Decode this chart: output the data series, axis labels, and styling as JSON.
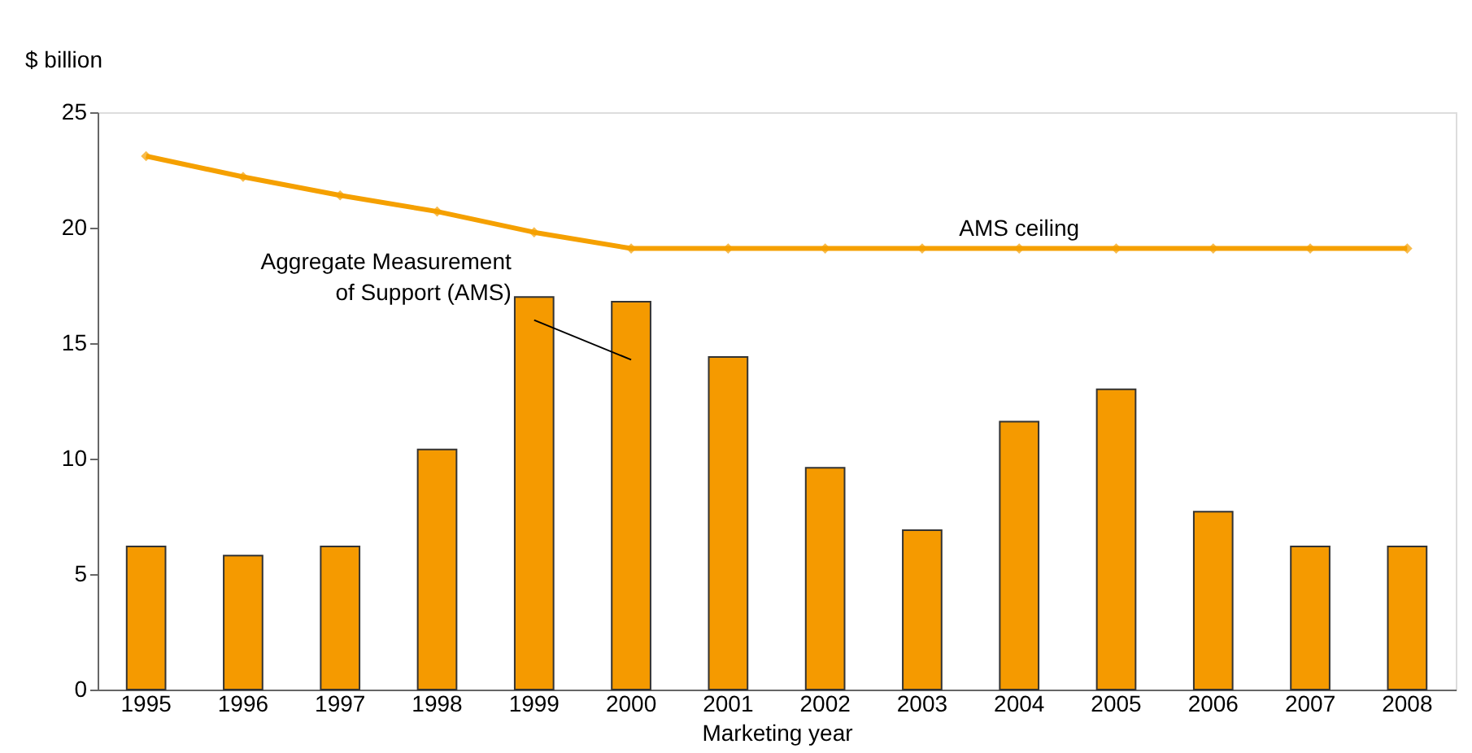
{
  "chart_data": {
    "type": "bar",
    "ylabel": "$ billion",
    "xlabel": "Marketing year",
    "categories": [
      "1995",
      "1996",
      "1997",
      "1998",
      "1999",
      "2000",
      "2001",
      "2002",
      "2003",
      "2004",
      "2005",
      "2006",
      "2007",
      "2008"
    ],
    "series": [
      {
        "name": "Aggregate Measurement of Support (AMS)",
        "color": "#f59a00",
        "values": [
          6.2,
          5.8,
          6.2,
          10.4,
          17.0,
          16.8,
          14.4,
          9.6,
          6.9,
          11.6,
          13.0,
          7.7,
          6.2,
          6.2
        ]
      },
      {
        "name": "AMS ceiling",
        "type": "line",
        "color": "#f5a000",
        "marker": "diamond",
        "values": [
          23.1,
          22.2,
          21.4,
          20.7,
          19.8,
          19.1,
          19.1,
          19.1,
          19.1,
          19.1,
          19.1,
          19.1,
          19.1,
          19.1
        ]
      }
    ],
    "ylim": [
      0,
      25
    ],
    "yticks": [
      0,
      5,
      10,
      15,
      20,
      25
    ],
    "grid": false
  }
}
